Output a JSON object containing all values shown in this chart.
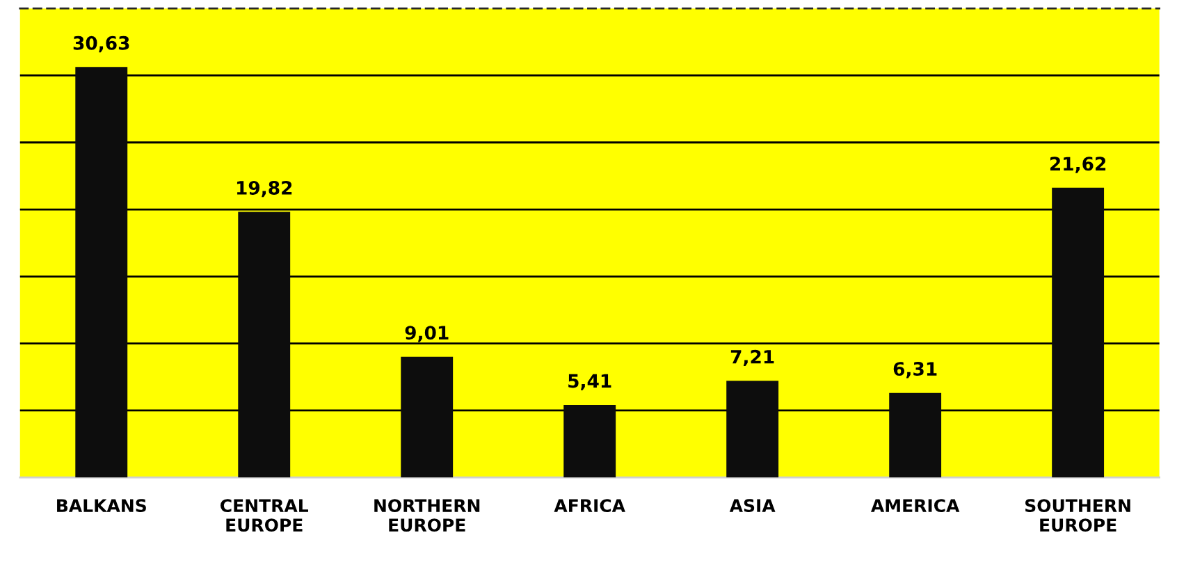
{
  "chart_data": {
    "type": "bar",
    "categories": [
      "BALKANS",
      "CENTRAL\nEUROPE",
      "NORTHERN\nEUROPE",
      "AFRICA",
      "ASIA",
      "AMERICA",
      "SOUTHERN\nEUROPE"
    ],
    "values": [
      30.63,
      19.82,
      9.01,
      5.41,
      7.21,
      6.31,
      21.62
    ],
    "value_labels": [
      "30,63",
      "19,82",
      "9,01",
      "5,41",
      "7,21",
      "6,31",
      "21,62"
    ],
    "color": "#0d0d0d",
    "ylim": [
      0,
      35
    ],
    "yticks": [
      {
        "value": 5,
        "label": null
      },
      {
        "value": 10,
        "label": null
      },
      {
        "value": 15,
        "label": null
      },
      {
        "value": 20,
        "label": null
      },
      {
        "value": 25,
        "label": null
      },
      {
        "value": 30,
        "label": null
      }
    ],
    "tick_labels": "x",
    "grid": "y"
  }
}
